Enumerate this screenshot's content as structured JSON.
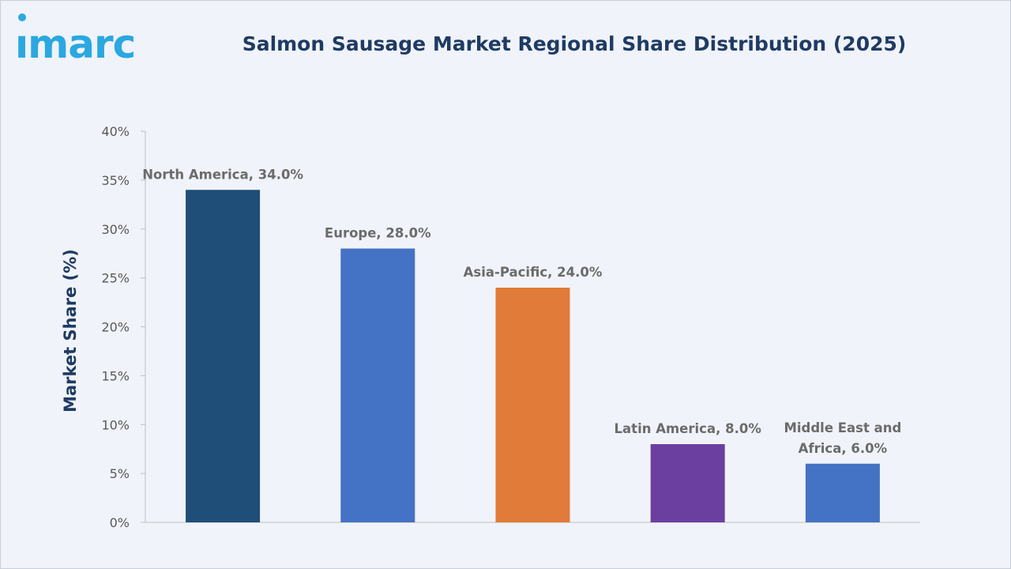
{
  "header": {
    "logo_text": "imarc",
    "title": "Salmon Sausage Market Regional Share Distribution (2025)"
  },
  "colors": {
    "background": "#f0f3f9",
    "title": "#1f3b63",
    "logo": "#2aa8e0"
  },
  "chart_data": {
    "type": "bar",
    "title": "Salmon Sausage Market Regional Share Distribution (2025)",
    "xlabel": "",
    "ylabel": "Market Share (%)",
    "ylim": [
      0,
      40
    ],
    "yticks": [
      0,
      5,
      10,
      15,
      20,
      25,
      30,
      35,
      40
    ],
    "ytick_labels": [
      "0%",
      "5%",
      "10%",
      "15%",
      "20%",
      "25%",
      "30%",
      "35%",
      "40%"
    ],
    "categories": [
      "North America",
      "Europe",
      "Asia-Pacific",
      "Latin America",
      "Middle East and Africa"
    ],
    "values": [
      34.0,
      28.0,
      24.0,
      8.0,
      6.0
    ],
    "bar_colors": [
      "#1f4e79",
      "#4472c4",
      "#e07b39",
      "#6b3fa0",
      "#4472c4"
    ],
    "data_labels": [
      [
        "North America, 34.0%"
      ],
      [
        "Europe, 28.0%"
      ],
      [
        "Asia-Pacific, 24.0%"
      ],
      [
        "Latin America, 8.0%"
      ],
      [
        "Middle East and",
        "Africa, 6.0%"
      ]
    ],
    "grid": false,
    "legend": "none"
  }
}
